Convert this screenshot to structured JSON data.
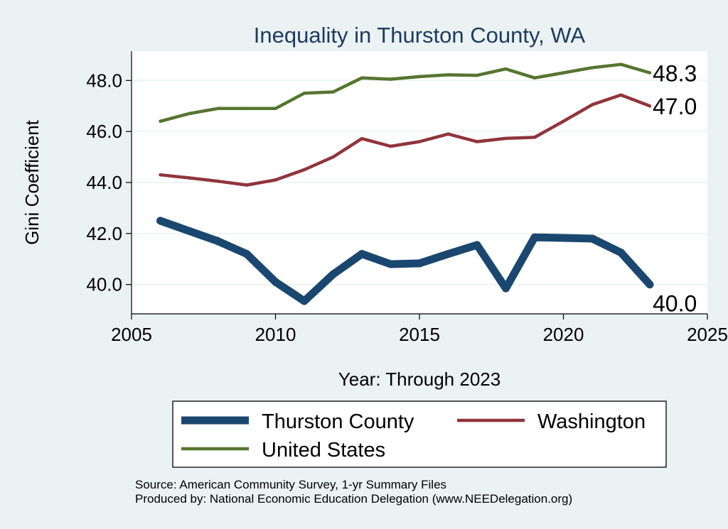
{
  "chart_data": {
    "type": "line",
    "title": "Inequality in Thurston County, WA",
    "xlabel": "Year: Through 2023",
    "ylabel": "Gini Coefficient",
    "xlim": [
      2005,
      2025
    ],
    "ylim": [
      38.85,
      49.15
    ],
    "xticks": [
      2005,
      2010,
      2015,
      2020,
      2025
    ],
    "yticks": [
      40.0,
      42.0,
      44.0,
      46.0,
      48.0
    ],
    "ytick_labels": [
      "40.0",
      "42.0",
      "44.0",
      "46.0",
      "48.0"
    ],
    "grid": true,
    "series": [
      {
        "name": "Thurston County",
        "color": "#1a476f",
        "x": [
          2006,
          2007,
          2008,
          2009,
          2010,
          2011,
          2012,
          2013,
          2014,
          2015,
          2016,
          2017,
          2018,
          2019,
          2021,
          2022,
          2023
        ],
        "values": [
          42.5,
          42.1,
          41.7,
          41.2,
          40.1,
          39.35,
          40.4,
          41.2,
          40.8,
          40.83,
          41.2,
          41.55,
          39.85,
          41.85,
          41.8,
          41.25,
          40.0
        ],
        "end_label": "40.0"
      },
      {
        "name": "Washington",
        "color": "#90353b",
        "x": [
          2006,
          2007,
          2008,
          2009,
          2010,
          2011,
          2012,
          2013,
          2014,
          2015,
          2016,
          2017,
          2018,
          2019,
          2020,
          2021,
          2022,
          2023
        ],
        "values": [
          44.3,
          44.18,
          44.05,
          43.9,
          44.1,
          44.5,
          45.0,
          45.72,
          45.42,
          45.6,
          45.9,
          45.6,
          45.73,
          45.77,
          46.4,
          47.05,
          47.43,
          47.0
        ],
        "end_label": "47.0"
      },
      {
        "name": "United States",
        "color": "#55752f",
        "x": [
          2006,
          2007,
          2008,
          2009,
          2010,
          2011,
          2012,
          2013,
          2014,
          2015,
          2016,
          2017,
          2018,
          2019,
          2020,
          2021,
          2022,
          2023
        ],
        "values": [
          46.4,
          46.7,
          46.9,
          46.9,
          46.9,
          47.5,
          47.55,
          48.1,
          48.05,
          48.15,
          48.22,
          48.2,
          48.45,
          48.1,
          48.3,
          48.5,
          48.63,
          48.3
        ],
        "end_label": "48.3"
      }
    ],
    "legend": {
      "position": "bottom"
    }
  },
  "source": {
    "line1": "Source: American Community Survey, 1-yr Summary Files",
    "line2": "Produced by: National Economic Education Delegation (www.NEEDelegation.org)"
  }
}
